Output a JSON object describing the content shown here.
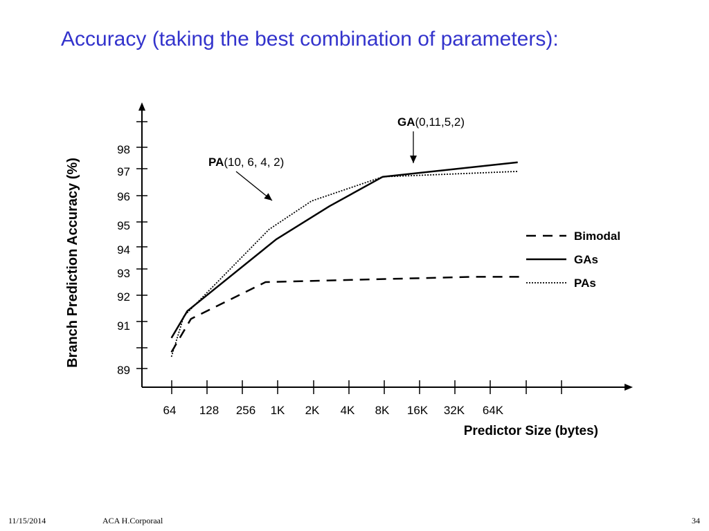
{
  "slide": {
    "title": "Accuracy (taking the best combination of parameters):"
  },
  "footer": {
    "date": "11/15/2014",
    "author": "ACA H.Corporaal",
    "page": "34"
  },
  "chart_data": {
    "type": "line",
    "xlabel": "Predictor Size (bytes)",
    "ylabel": "Branch Prediction Accuracy (%)",
    "x_tick_labels": [
      "64",
      "128",
      "256",
      "1K",
      "2K",
      "4K",
      "8K",
      "16K",
      "32K",
      "64K"
    ],
    "y_tick_labels": [
      "98",
      "97",
      "96",
      "95",
      "94",
      "93",
      "92",
      "91",
      "89"
    ],
    "series": [
      {
        "name": "Bimodal",
        "style": "dashed",
        "color": "#000000",
        "points": [
          [
            0.05,
            89.7
          ],
          [
            0.6,
            91.1
          ],
          [
            2.7,
            92.5
          ],
          [
            8.5,
            92.7
          ],
          [
            9.9,
            92.7
          ]
        ]
      },
      {
        "name": "GAs",
        "style": "solid",
        "color": "#000000",
        "points": [
          [
            0.05,
            90.3
          ],
          [
            0.5,
            91.4
          ],
          [
            3.0,
            94.3
          ],
          [
            4.5,
            95.6
          ],
          [
            6.0,
            96.7
          ],
          [
            9.8,
            97.3
          ]
        ]
      },
      {
        "name": "PAs",
        "style": "dotted",
        "color": "#000000",
        "points": [
          [
            0.05,
            89.5
          ],
          [
            0.4,
            91.2
          ],
          [
            2.8,
            94.7
          ],
          [
            4.0,
            95.8
          ],
          [
            6.0,
            96.7
          ],
          [
            9.8,
            96.9
          ]
        ]
      }
    ],
    "annotations": [
      {
        "bold": "GA",
        "text": "(0,11,5,2)",
        "target_series": "GAs"
      },
      {
        "bold": "PA",
        "text": "(10, 6, 4, 2)",
        "target_series": "PAs"
      }
    ],
    "legend": {
      "position": "right",
      "items": [
        "Bimodal",
        "GAs",
        "PAs"
      ]
    }
  }
}
